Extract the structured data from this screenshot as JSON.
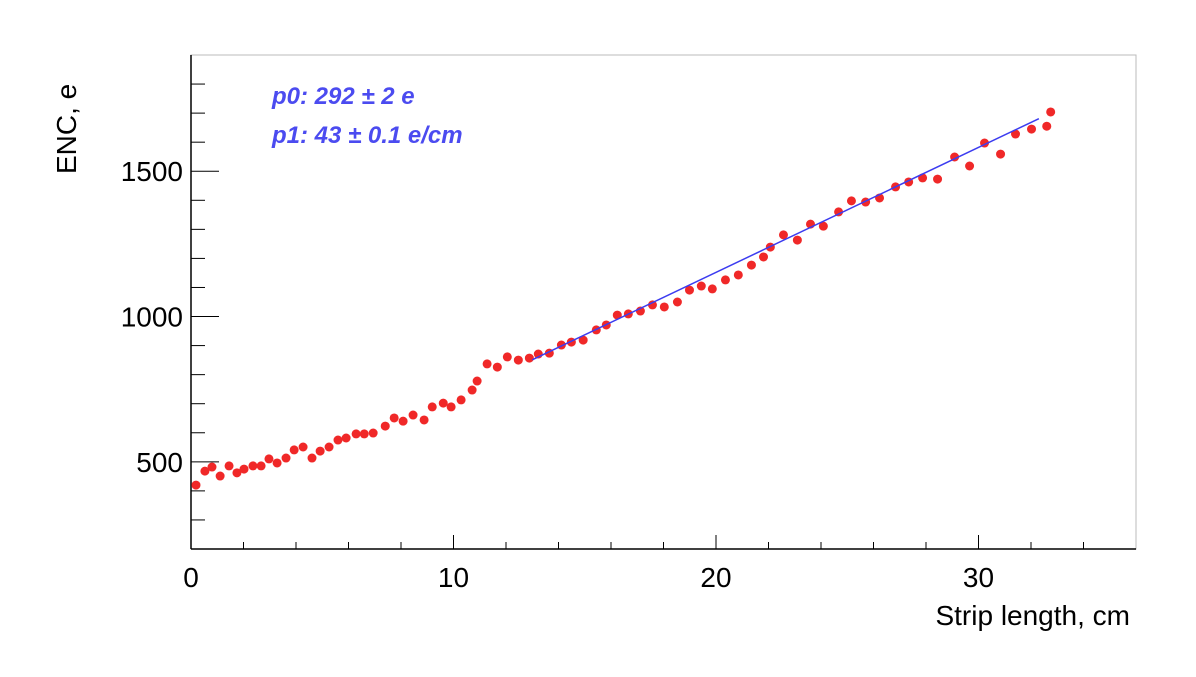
{
  "chart_data": {
    "type": "scatter",
    "xlabel": "Strip length, cm",
    "ylabel": "ENC, e",
    "xlim": [
      0,
      36
    ],
    "ylim": [
      200,
      1900
    ],
    "xticks": [
      0,
      10,
      20,
      30
    ],
    "yticks": [
      500,
      1000,
      1500
    ],
    "xminorticks": [
      2,
      4,
      6,
      8,
      12,
      14,
      16,
      18,
      22,
      24,
      26,
      28,
      32,
      34
    ],
    "yminorticks": [
      300,
      400,
      600,
      700,
      800,
      900,
      1100,
      1200,
      1300,
      1400,
      1600,
      1700,
      1800
    ],
    "series": [
      {
        "color": "#f02828",
        "x": [
          0.19,
          0.53,
          0.8,
          1.11,
          1.45,
          1.75,
          2.02,
          2.36,
          2.67,
          2.97,
          3.28,
          3.62,
          3.93,
          4.27,
          4.61,
          4.92,
          5.26,
          5.6,
          5.91,
          6.29,
          6.6,
          6.94,
          7.4,
          7.74,
          8.08,
          8.46,
          8.88,
          9.19,
          9.61,
          9.91,
          10.29,
          10.71,
          10.9,
          11.28,
          11.67,
          12.05,
          12.47,
          12.89,
          13.23,
          13.65,
          14.11,
          14.49,
          14.94,
          15.44,
          15.82,
          16.24,
          16.66,
          17.12,
          17.58,
          18.03,
          18.53,
          18.99,
          19.44,
          19.86,
          20.36,
          20.85,
          21.35,
          21.81,
          22.07,
          22.57,
          23.1,
          23.6,
          24.09,
          24.67,
          25.16,
          25.7,
          26.23,
          26.84,
          27.34,
          27.87,
          28.44,
          29.09,
          29.66,
          30.23,
          30.84,
          31.41,
          32.02,
          32.6,
          32.75
        ],
        "values": [
          420,
          468,
          482,
          451,
          486,
          462,
          475,
          486,
          486,
          510,
          496,
          513,
          541,
          551,
          513,
          537,
          551,
          575,
          582,
          596,
          596,
          599,
          623,
          651,
          640,
          661,
          644,
          689,
          702,
          689,
          713,
          747,
          778,
          837,
          826,
          861,
          850,
          857,
          871,
          874,
          902,
          912,
          919,
          954,
          971,
          1005,
          1009,
          1019,
          1040,
          1033,
          1050,
          1091,
          1105,
          1095,
          1126,
          1143,
          1177,
          1205,
          1239,
          1281,
          1263,
          1318,
          1311,
          1360,
          1398,
          1394,
          1408,
          1446,
          1463,
          1477,
          1473,
          1549,
          1518,
          1597,
          1559,
          1628,
          1645,
          1655,
          1704
        ]
      }
    ],
    "fit": {
      "color": "#3c3cf0",
      "intercept": 292,
      "slope": 43,
      "x": [
        13,
        32.3
      ]
    },
    "annotations": [
      "p0:  292 ±  2 e",
      "p1:   43 ± 0.1 e/cm"
    ]
  }
}
